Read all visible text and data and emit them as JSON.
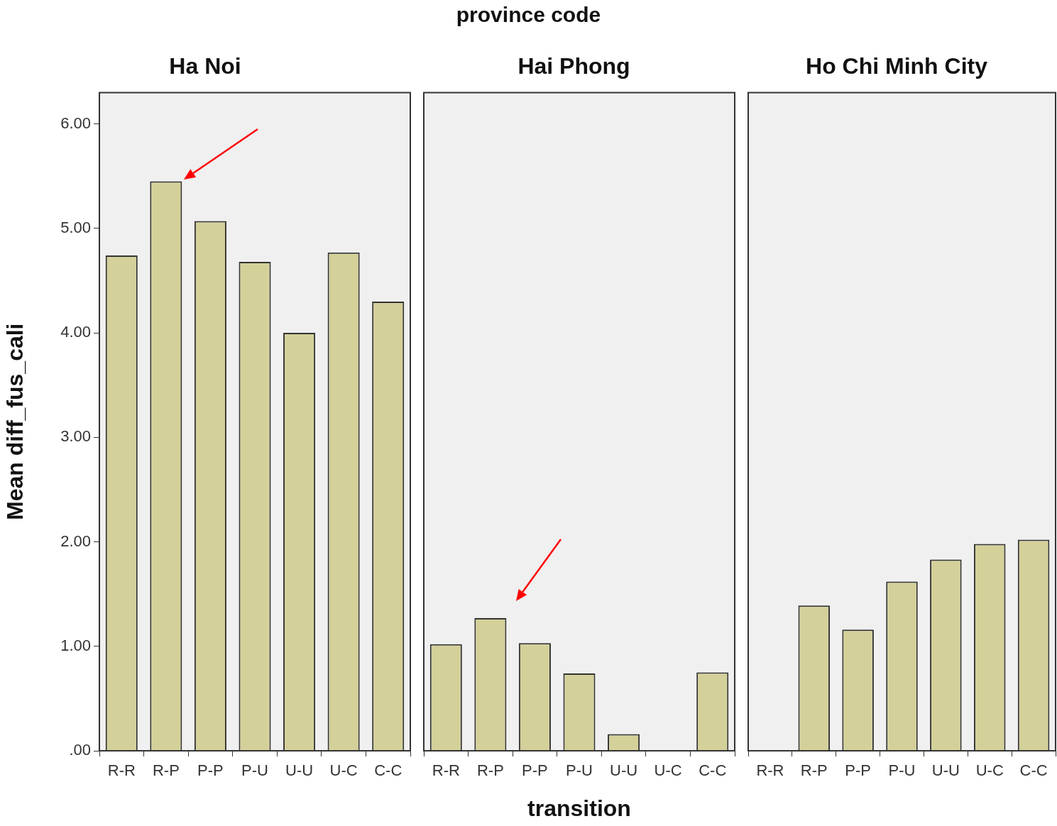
{
  "chart_data": [
    {
      "type": "bar",
      "title": "Ha Noi",
      "ylabel": "Mean diff_fus_cali",
      "categories": [
        "R-R",
        "R-P",
        "P-P",
        "P-U",
        "U-U",
        "U-C",
        "C-C"
      ],
      "values": [
        4.74,
        5.45,
        5.07,
        4.68,
        4.0,
        4.77,
        4.3
      ],
      "color": "#d4d09a",
      "ylim": [
        0,
        6.3
      ],
      "yticks": [
        {
          "value": 0,
          "label": ".00"
        },
        {
          "value": 1,
          "label": "1.00"
        },
        {
          "value": 2,
          "label": "2.00"
        },
        {
          "value": 3,
          "label": "3.00"
        },
        {
          "value": 4,
          "label": "4.00"
        },
        {
          "value": 5,
          "label": "5.00"
        },
        {
          "value": 6,
          "label": "6.00"
        }
      ]
    },
    {
      "type": "bar",
      "title": "Hai Phong",
      "xlabel": "transition",
      "annotations": [
        "province code"
      ],
      "categories": [
        "R-R",
        "R-P",
        "P-P",
        "P-U",
        "U-U",
        "U-C",
        "C-C"
      ],
      "values": [
        1.02,
        1.27,
        1.03,
        0.74,
        0.16,
        null,
        0.75
      ],
      "color": "#d4d09a",
      "ylim": [
        0,
        6.3
      ],
      "tick_labels": "x"
    },
    {
      "type": "bar",
      "title": "Ho Chi Minh City",
      "categories": [
        "R-R",
        "R-P",
        "P-P",
        "P-U",
        "U-U",
        "U-C",
        "C-C"
      ],
      "values": [
        null,
        1.39,
        1.16,
        1.62,
        1.83,
        1.98,
        2.02
      ],
      "color": "#d4d09a",
      "ylim": [
        0,
        6.3
      ],
      "tick_labels": "x"
    }
  ]
}
